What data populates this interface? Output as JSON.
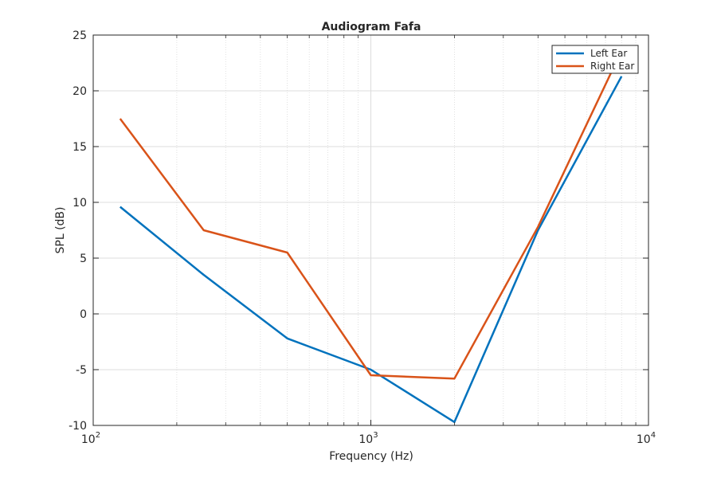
{
  "chart_data": {
    "type": "line",
    "title": "Audiogram Fafa",
    "xlabel": "Frequency (Hz)",
    "ylabel": "SPL (dB)",
    "xscale": "log",
    "xlim": [
      100,
      10000
    ],
    "ylim": [
      -10,
      25
    ],
    "grid": "on",
    "legend_placement": "top-right",
    "x_ticks": [
      {
        "base": "10",
        "exp": "2",
        "value": 100
      },
      {
        "base": "10",
        "exp": "3",
        "value": 1000
      },
      {
        "base": "10",
        "exp": "4",
        "value": 10000
      }
    ],
    "y_ticks": [
      "-10",
      "-5",
      "0",
      "5",
      "10",
      "15",
      "20",
      "25"
    ],
    "x": [
      125,
      250,
      500,
      1000,
      2000,
      4000,
      8000
    ],
    "series": [
      {
        "name": "Left Ear",
        "color": "#0072BD",
        "values": [
          9.6,
          3.5,
          -2.2,
          -5.0,
          -9.7,
          7.5,
          21.3
        ]
      },
      {
        "name": "Right Ear",
        "color": "#D95319",
        "values": [
          17.5,
          7.5,
          5.5,
          -5.5,
          -5.8,
          7.8,
          23.6
        ]
      }
    ]
  }
}
